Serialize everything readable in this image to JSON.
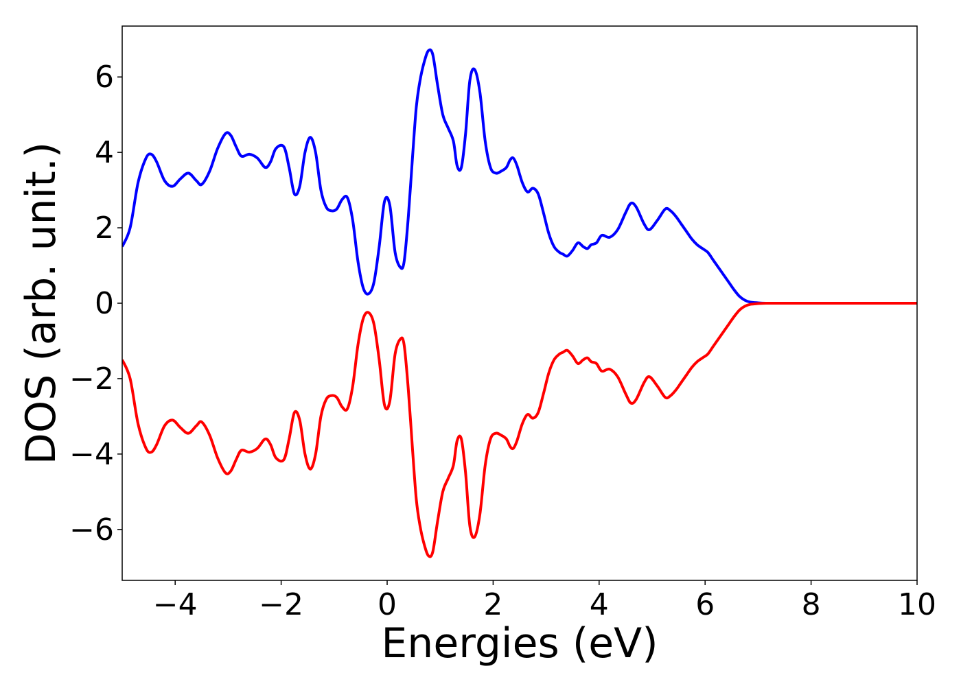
{
  "chart_data": {
    "type": "line",
    "xlabel": "Energies (eV)",
    "ylabel": "DOS (arb. unit.)",
    "xlim": [
      -5,
      10
    ],
    "ylim": [
      -7.35,
      7.35
    ],
    "xticks": [
      -4,
      -2,
      0,
      2,
      4,
      6,
      8,
      10
    ],
    "xtick_labels": [
      "−4",
      "−2",
      "0",
      "2",
      "4",
      "6",
      "8",
      "10"
    ],
    "yticks": [
      -6,
      -4,
      -2,
      0,
      2,
      4,
      6
    ],
    "ytick_labels": [
      "−6",
      "−4",
      "−2",
      "0",
      "2",
      "4",
      "6"
    ],
    "grid": false,
    "legend": "none",
    "series": [
      {
        "color": "#0000ff",
        "x": [
          -5.0,
          -4.85,
          -4.7,
          -4.55,
          -4.45,
          -4.35,
          -4.2,
          -4.05,
          -3.9,
          -3.75,
          -3.6,
          -3.5,
          -3.35,
          -3.2,
          -3.05,
          -2.95,
          -2.85,
          -2.75,
          -2.6,
          -2.45,
          -2.3,
          -2.2,
          -2.1,
          -1.95,
          -1.85,
          -1.75,
          -1.65,
          -1.55,
          -1.45,
          -1.35,
          -1.25,
          -1.15,
          -1.05,
          -0.95,
          -0.85,
          -0.75,
          -0.65,
          -0.55,
          -0.45,
          -0.35,
          -0.25,
          -0.15,
          -0.05,
          0.05,
          0.15,
          0.25,
          0.32,
          0.4,
          0.48,
          0.55,
          0.62,
          0.7,
          0.78,
          0.86,
          0.95,
          1.05,
          1.15,
          1.25,
          1.32,
          1.4,
          1.48,
          1.56,
          1.65,
          1.75,
          1.85,
          1.95,
          2.05,
          2.15,
          2.25,
          2.32,
          2.38,
          2.45,
          2.55,
          2.65,
          2.75,
          2.85,
          2.95,
          3.05,
          3.15,
          3.25,
          3.32,
          3.4,
          3.5,
          3.6,
          3.7,
          3.78,
          3.85,
          3.95,
          4.05,
          4.2,
          4.35,
          4.5,
          4.6,
          4.7,
          4.85,
          4.95,
          5.1,
          5.25,
          5.35,
          5.45,
          5.55,
          5.65,
          5.75,
          5.85,
          5.95,
          6.05,
          6.15,
          6.25,
          6.35,
          6.45,
          6.55,
          6.65,
          6.75,
          6.85,
          7.0,
          7.15,
          7.3,
          7.45,
          7.6,
          7.75,
          7.9,
          8.0,
          8.1,
          8.2,
          8.3,
          8.4,
          8.5,
          8.6,
          8.7,
          8.8,
          9.0,
          9.5,
          10.0
        ],
        "y": [
          1.5,
          2.0,
          3.2,
          3.85,
          3.95,
          3.75,
          3.25,
          3.1,
          3.3,
          3.45,
          3.25,
          3.15,
          3.5,
          4.1,
          4.5,
          4.45,
          4.15,
          3.9,
          3.95,
          3.85,
          3.6,
          3.75,
          4.1,
          4.15,
          3.6,
          2.9,
          3.1,
          4.0,
          4.4,
          4.0,
          3.0,
          2.55,
          2.45,
          2.5,
          2.75,
          2.8,
          2.2,
          1.1,
          0.4,
          0.25,
          0.55,
          1.5,
          2.7,
          2.6,
          1.35,
          0.95,
          1.1,
          2.3,
          3.9,
          5.2,
          5.9,
          6.4,
          6.7,
          6.6,
          5.8,
          5.0,
          4.65,
          4.3,
          3.65,
          3.6,
          4.5,
          5.9,
          6.2,
          5.6,
          4.3,
          3.6,
          3.45,
          3.5,
          3.6,
          3.8,
          3.85,
          3.65,
          3.2,
          2.95,
          3.05,
          2.9,
          2.4,
          1.85,
          1.5,
          1.35,
          1.3,
          1.25,
          1.4,
          1.6,
          1.5,
          1.45,
          1.55,
          1.6,
          1.8,
          1.75,
          1.95,
          2.4,
          2.65,
          2.55,
          2.1,
          1.95,
          2.2,
          2.5,
          2.45,
          2.3,
          2.1,
          1.9,
          1.7,
          1.55,
          1.45,
          1.35,
          1.15,
          0.95,
          0.75,
          0.55,
          0.35,
          0.18,
          0.08,
          0.03,
          0.01,
          0.0,
          0.0,
          0.0,
          0.0,
          0.0,
          0.0,
          0.0,
          0.0,
          0.0,
          0.0,
          0.0,
          0.0,
          0.0,
          0.0,
          0.0,
          0.0,
          0.0,
          0.0
        ]
      },
      {
        "color": "#ff0000",
        "x": [
          -5.0,
          -4.85,
          -4.7,
          -4.55,
          -4.45,
          -4.35,
          -4.2,
          -4.05,
          -3.9,
          -3.75,
          -3.6,
          -3.5,
          -3.35,
          -3.2,
          -3.05,
          -2.95,
          -2.85,
          -2.75,
          -2.6,
          -2.45,
          -2.3,
          -2.2,
          -2.1,
          -1.95,
          -1.85,
          -1.75,
          -1.65,
          -1.55,
          -1.45,
          -1.35,
          -1.25,
          -1.15,
          -1.05,
          -0.95,
          -0.85,
          -0.75,
          -0.65,
          -0.55,
          -0.45,
          -0.35,
          -0.25,
          -0.15,
          -0.05,
          0.05,
          0.15,
          0.25,
          0.32,
          0.4,
          0.48,
          0.55,
          0.62,
          0.7,
          0.78,
          0.86,
          0.95,
          1.05,
          1.15,
          1.25,
          1.32,
          1.4,
          1.48,
          1.56,
          1.65,
          1.75,
          1.85,
          1.95,
          2.05,
          2.15,
          2.25,
          2.32,
          2.38,
          2.45,
          2.55,
          2.65,
          2.75,
          2.85,
          2.95,
          3.05,
          3.15,
          3.25,
          3.32,
          3.4,
          3.5,
          3.6,
          3.7,
          3.78,
          3.85,
          3.95,
          4.05,
          4.2,
          4.35,
          4.5,
          4.6,
          4.7,
          4.85,
          4.95,
          5.1,
          5.25,
          5.35,
          5.45,
          5.55,
          5.65,
          5.75,
          5.85,
          5.95,
          6.05,
          6.15,
          6.25,
          6.35,
          6.45,
          6.55,
          6.65,
          6.75,
          6.85,
          7.0,
          7.15,
          7.3,
          7.45,
          7.6,
          7.75,
          7.9,
          8.0,
          8.1,
          8.2,
          8.3,
          8.4,
          8.5,
          8.6,
          8.7,
          8.8,
          9.0,
          9.5,
          10.0
        ],
        "y": [
          -1.5,
          -2.0,
          -3.2,
          -3.85,
          -3.95,
          -3.75,
          -3.25,
          -3.1,
          -3.3,
          -3.45,
          -3.25,
          -3.15,
          -3.5,
          -4.1,
          -4.5,
          -4.45,
          -4.15,
          -3.9,
          -3.95,
          -3.85,
          -3.6,
          -3.75,
          -4.1,
          -4.15,
          -3.6,
          -2.9,
          -3.1,
          -4.0,
          -4.4,
          -4.0,
          -3.0,
          -2.55,
          -2.45,
          -2.5,
          -2.75,
          -2.8,
          -2.2,
          -1.1,
          -0.4,
          -0.25,
          -0.55,
          -1.5,
          -2.7,
          -2.6,
          -1.35,
          -0.95,
          -1.1,
          -2.3,
          -3.9,
          -5.2,
          -5.9,
          -6.4,
          -6.7,
          -6.6,
          -5.8,
          -5.0,
          -4.65,
          -4.3,
          -3.65,
          -3.6,
          -4.5,
          -5.9,
          -6.2,
          -5.6,
          -4.3,
          -3.6,
          -3.45,
          -3.5,
          -3.6,
          -3.8,
          -3.85,
          -3.65,
          -3.2,
          -2.95,
          -3.05,
          -2.9,
          -2.4,
          -1.85,
          -1.5,
          -1.35,
          -1.3,
          -1.25,
          -1.4,
          -1.6,
          -1.5,
          -1.45,
          -1.55,
          -1.6,
          -1.8,
          -1.75,
          -1.95,
          -2.4,
          -2.65,
          -2.55,
          -2.1,
          -1.95,
          -2.2,
          -2.5,
          -2.45,
          -2.3,
          -2.1,
          -1.9,
          -1.7,
          -1.55,
          -1.45,
          -1.35,
          -1.15,
          -0.95,
          -0.75,
          -0.55,
          -0.35,
          -0.18,
          -0.08,
          -0.03,
          -0.01,
          0.0,
          0.0,
          0.0,
          0.0,
          0.0,
          0.0,
          0.0,
          0.0,
          0.0,
          0.0,
          0.0,
          0.0,
          0.0,
          0.0,
          0.0,
          0.0,
          0.0,
          0.0
        ]
      }
    ]
  }
}
